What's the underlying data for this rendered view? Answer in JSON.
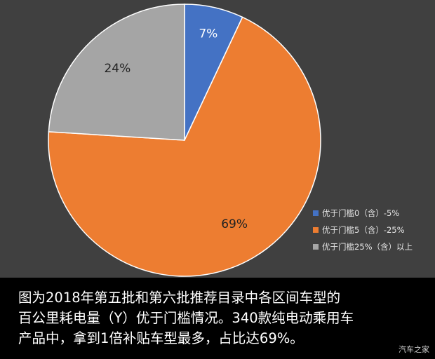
{
  "chart_data": {
    "type": "pie",
    "slices": [
      {
        "label": "优于门槛0（含）-5%",
        "value": 7,
        "value_label": "7%",
        "color": "#4472c4"
      },
      {
        "label": "优于门槛5（含）-25%",
        "value": 69,
        "value_label": "69%",
        "color": "#ed7d31"
      },
      {
        "label": "优于门槛25%（含）以上",
        "value": 24,
        "value_label": "24%",
        "color": "#a5a5a5"
      }
    ],
    "legend_position": "bottom-right",
    "start_angle": "12 o'clock",
    "direction": "clockwise"
  },
  "caption": {
    "line1": "图为2018年第五批和第六批推荐目录中各区间车型的",
    "line2": "百公里耗电量（Y）优于门槛情况。340款纯电动乘用车",
    "line3": "产品中，拿到1倍补贴车型最多，占比达69%。"
  },
  "watermark": "汽车之家"
}
